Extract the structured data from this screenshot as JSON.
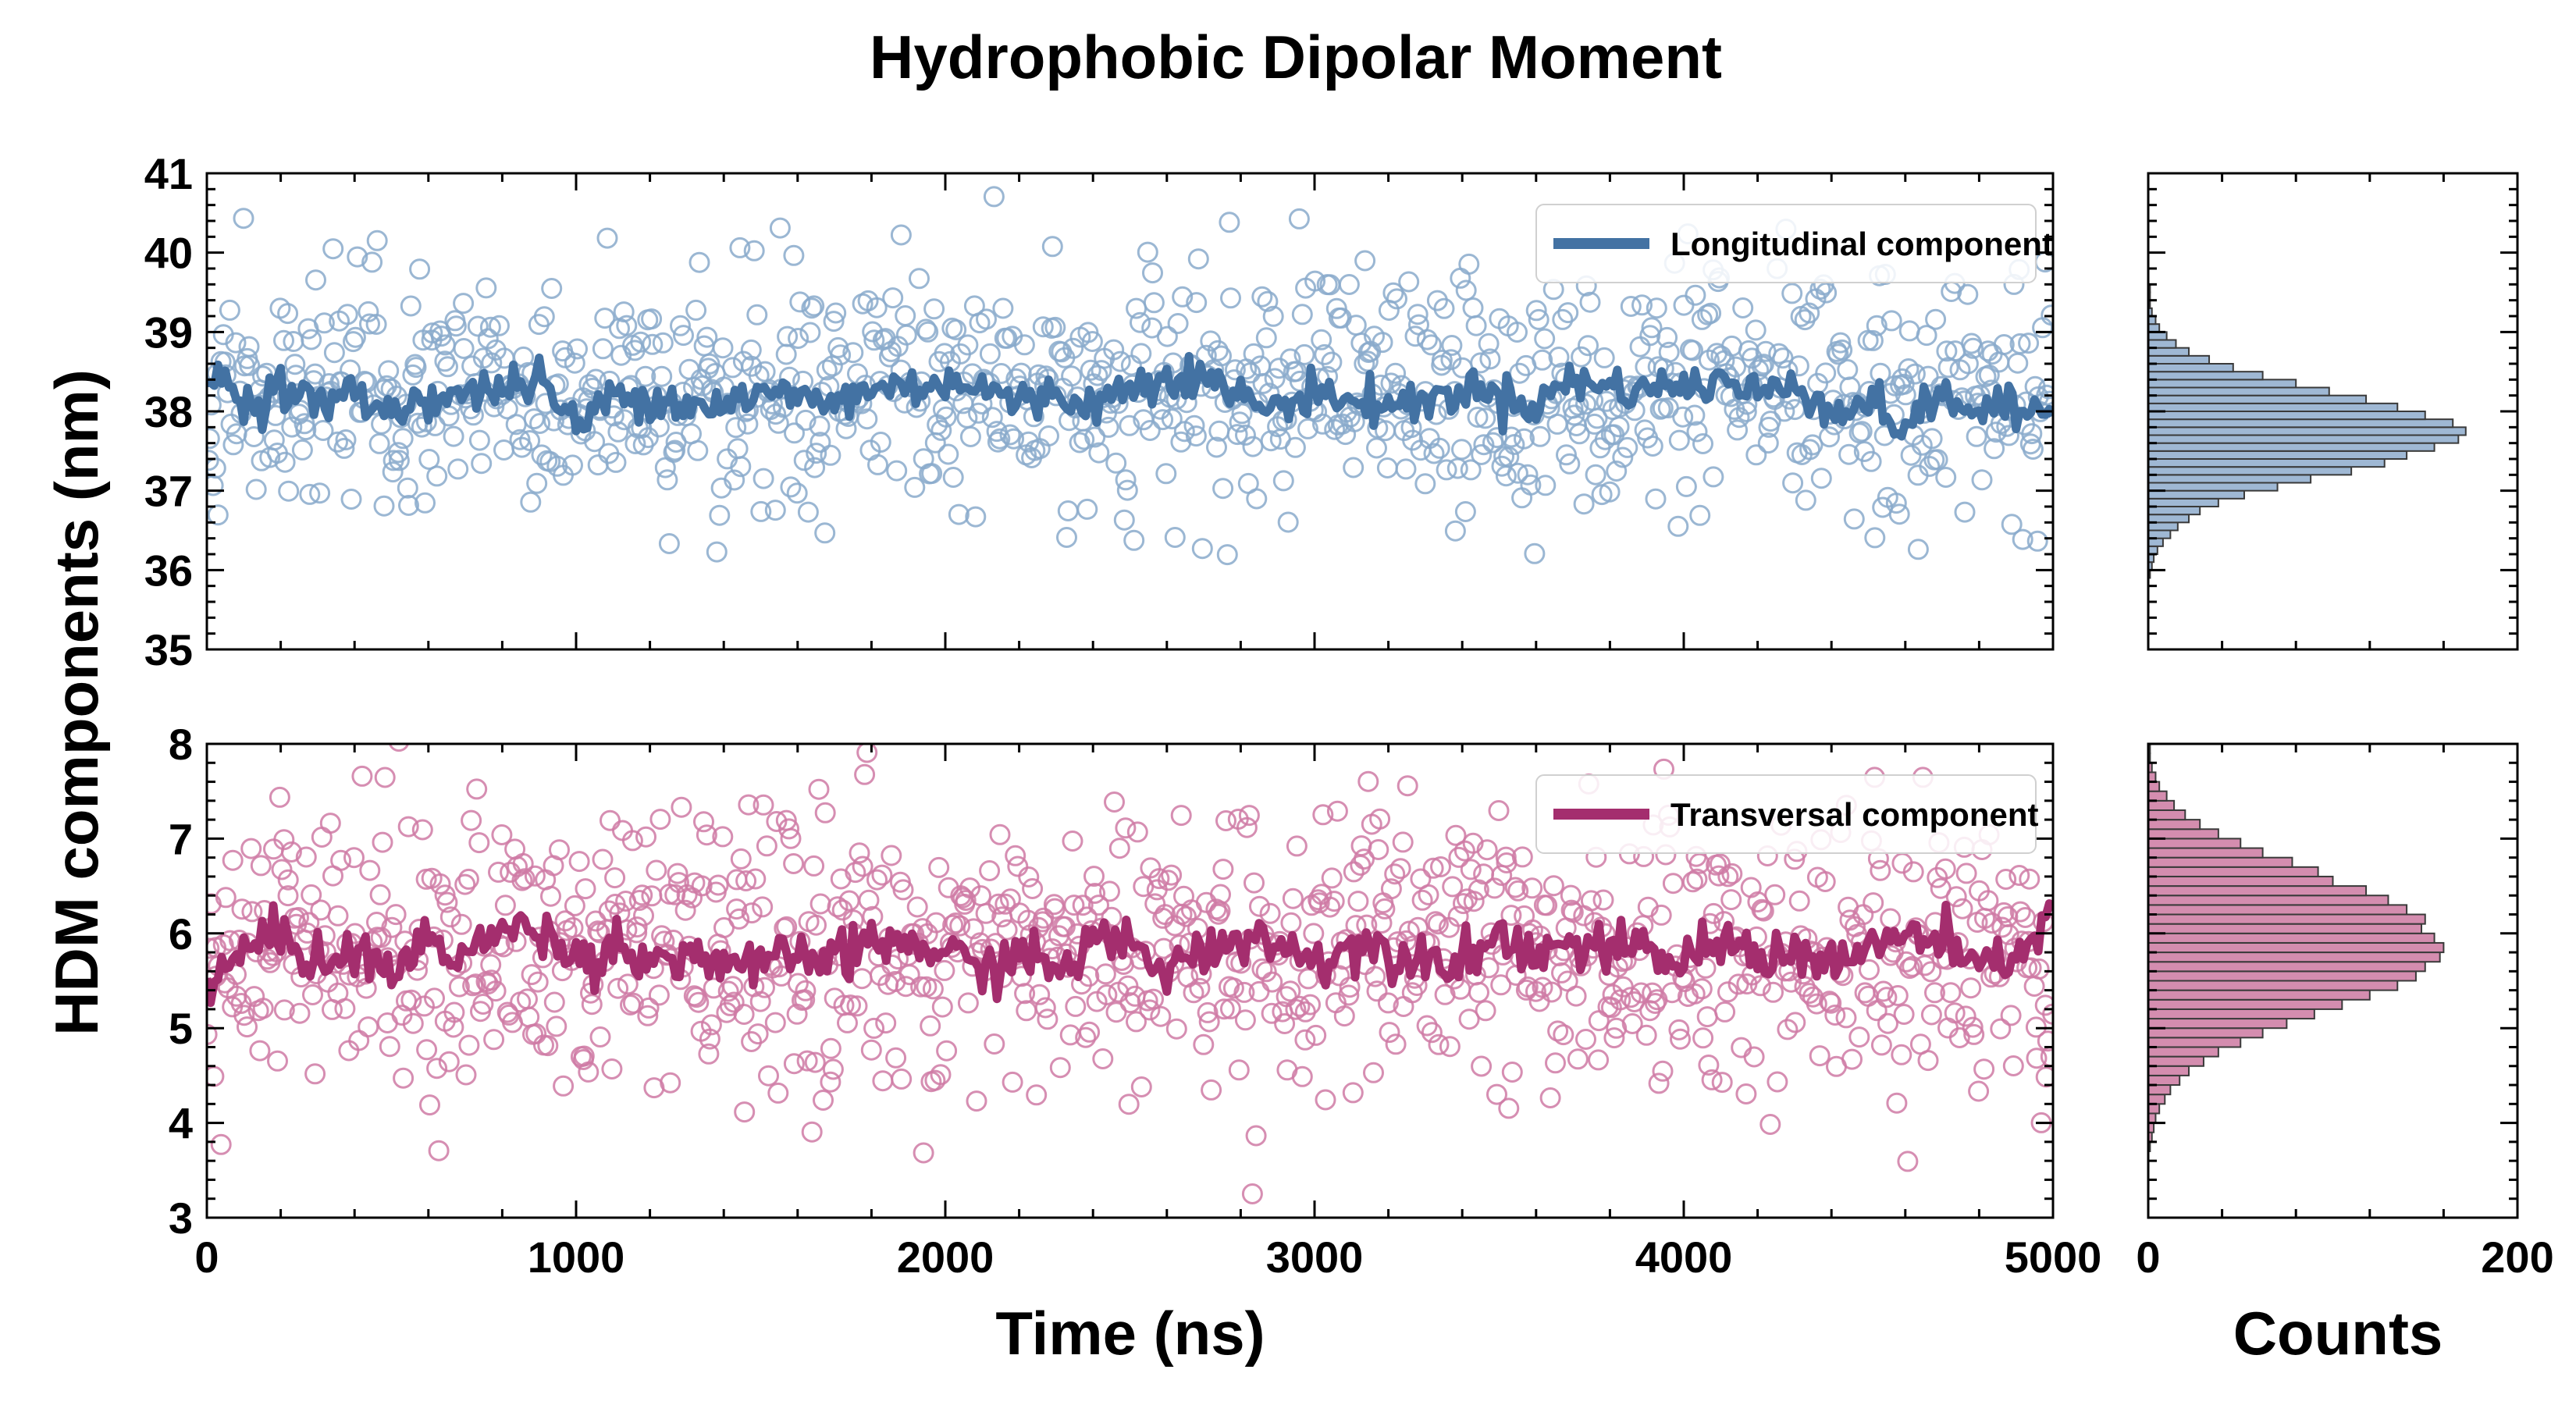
{
  "figure": {
    "title": "Hydrophobic Dipolar Moment",
    "ylabel": "HDM components (nm)",
    "xlabel_time": "Time (ns)",
    "xlabel_counts": "Counts"
  },
  "colors": {
    "longitudinal": "#4372a3",
    "longitudinal_marker": "#8aaacb",
    "longitudinal_hist": "#9fb8d4",
    "transversal": "#a42e6e",
    "transversal_marker": "#cf7aa4",
    "transversal_hist": "#d48daf"
  },
  "chart_data": [
    {
      "type": "scatter",
      "panel": "longitudinal-timeseries",
      "xlim": [
        0,
        5000
      ],
      "ylim": [
        35,
        41
      ],
      "xticks": [
        "0",
        "1000",
        "2000",
        "3000",
        "4000",
        "5000"
      ],
      "yticks": [
        "35",
        "36",
        "37",
        "38",
        "39",
        "40",
        "41"
      ],
      "series": [
        {
          "name": "Longitudinal component",
          "kind": "line",
          "mean": 38.2,
          "x": [
            0,
            100,
            200,
            300,
            400,
            500,
            600,
            700,
            800,
            900,
            1000,
            1100,
            1200,
            1300,
            1400,
            1500,
            1600,
            1700,
            1800,
            1900,
            2000,
            2100,
            2200,
            2300,
            2400,
            2500,
            2600,
            2700,
            2800,
            2900,
            3000,
            3100,
            3200,
            3300,
            3400,
            3500,
            3600,
            3700,
            3800,
            3900,
            4000,
            4100,
            4200,
            4300,
            4400,
            4500,
            4600,
            4700,
            4800,
            4900,
            5000
          ],
          "y": [
            38.6,
            38.1,
            38.3,
            38.1,
            38.2,
            38.0,
            38.2,
            38.2,
            38.3,
            38.4,
            37.8,
            38.2,
            38.2,
            38.1,
            38.1,
            38.2,
            38.2,
            38.1,
            38.3,
            38.3,
            38.4,
            38.3,
            38.1,
            38.2,
            38.1,
            38.3,
            38.5,
            38.4,
            38.2,
            38.0,
            38.3,
            38.1,
            38.1,
            38.1,
            38.3,
            38.2,
            38.1,
            38.4,
            38.3,
            38.3,
            38.3,
            38.4,
            38.2,
            38.4,
            38.0,
            38.1,
            37.8,
            38.2,
            38.0,
            38.0,
            38.0
          ]
        },
        {
          "kind": "scatter",
          "mean": 38.2,
          "sd": 0.75,
          "n": 1000
        }
      ]
    },
    {
      "type": "bar",
      "panel": "longitudinal-histogram",
      "orientation": "horizontal",
      "xlim": [
        0,
        200
      ],
      "ylim": [
        35,
        41
      ],
      "xticks": [
        "0",
        "200"
      ],
      "bin_width": 0.1,
      "bin_start": 35.9,
      "values": [
        1,
        2,
        3,
        5,
        8,
        12,
        16,
        22,
        28,
        38,
        52,
        70,
        88,
        110,
        128,
        140,
        155,
        168,
        172,
        165,
        150,
        135,
        118,
        98,
        80,
        62,
        46,
        33,
        22,
        15,
        10,
        6,
        4,
        2,
        1,
        1,
        1
      ]
    },
    {
      "type": "scatter",
      "panel": "transversal-timeseries",
      "xlim": [
        0,
        5000
      ],
      "ylim": [
        3,
        8
      ],
      "xticks": [
        "0",
        "1000",
        "2000",
        "3000",
        "4000",
        "5000"
      ],
      "yticks": [
        "3",
        "4",
        "5",
        "6",
        "7",
        "8"
      ],
      "series": [
        {
          "name": "Transversal component",
          "kind": "line",
          "mean": 5.8,
          "x": [
            0,
            100,
            200,
            300,
            400,
            500,
            600,
            700,
            800,
            900,
            1000,
            1100,
            1200,
            1300,
            1400,
            1500,
            1600,
            1700,
            1800,
            1900,
            2000,
            2100,
            2200,
            2300,
            2400,
            2500,
            2600,
            2700,
            2800,
            2900,
            3000,
            3100,
            3200,
            3300,
            3400,
            3500,
            3600,
            3700,
            3800,
            3900,
            4000,
            4100,
            4200,
            4300,
            4400,
            4500,
            4600,
            4700,
            4800,
            4900,
            5000
          ],
          "y": [
            5.4,
            5.8,
            6.0,
            5.7,
            5.8,
            5.6,
            5.9,
            5.8,
            6.0,
            6.1,
            5.7,
            5.9,
            5.7,
            5.8,
            5.7,
            5.6,
            5.8,
            5.7,
            5.9,
            5.9,
            5.8,
            5.6,
            5.8,
            5.6,
            5.9,
            5.9,
            5.6,
            5.8,
            6.0,
            5.9,
            5.7,
            5.9,
            5.8,
            5.8,
            5.7,
            6.0,
            5.8,
            5.9,
            5.8,
            5.8,
            5.7,
            5.9,
            5.8,
            5.8,
            5.7,
            5.8,
            6.0,
            5.9,
            5.6,
            5.8,
            6.2
          ]
        },
        {
          "kind": "scatter",
          "mean": 5.8,
          "sd": 0.75,
          "n": 1000
        }
      ]
    },
    {
      "type": "bar",
      "panel": "transversal-histogram",
      "orientation": "horizontal",
      "xlim": [
        0,
        200
      ],
      "ylim": [
        3,
        8
      ],
      "xticks": [
        "0",
        "200"
      ],
      "bin_width": 0.1,
      "bin_start": 3.7,
      "values": [
        1,
        2,
        3,
        4,
        6,
        9,
        12,
        17,
        22,
        30,
        38,
        50,
        62,
        75,
        90,
        105,
        120,
        135,
        145,
        150,
        158,
        160,
        155,
        148,
        150,
        140,
        130,
        118,
        100,
        92,
        78,
        62,
        50,
        38,
        28,
        20,
        14,
        10,
        6,
        4,
        2,
        1,
        1
      ]
    }
  ]
}
